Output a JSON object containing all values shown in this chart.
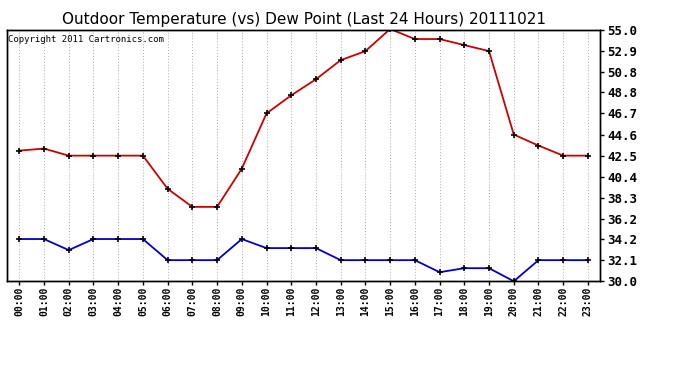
{
  "title": "Outdoor Temperature (vs) Dew Point (Last 24 Hours) 20111021",
  "copyright": "Copyright 2011 Cartronics.com",
  "x_labels": [
    "00:00",
    "01:00",
    "02:00",
    "03:00",
    "04:00",
    "05:00",
    "06:00",
    "07:00",
    "08:00",
    "09:00",
    "10:00",
    "11:00",
    "12:00",
    "13:00",
    "14:00",
    "15:00",
    "16:00",
    "17:00",
    "18:00",
    "19:00",
    "20:00",
    "21:00",
    "22:00",
    "23:00"
  ],
  "temp_data": [
    43.0,
    43.2,
    42.5,
    42.5,
    42.5,
    42.5,
    39.2,
    37.4,
    37.4,
    41.2,
    46.7,
    48.5,
    50.1,
    52.0,
    52.9,
    55.1,
    54.1,
    54.1,
    53.5,
    52.9,
    44.6,
    43.5,
    42.5,
    42.5
  ],
  "dew_data": [
    34.2,
    34.2,
    33.1,
    34.2,
    34.2,
    34.2,
    32.1,
    32.1,
    32.1,
    34.2,
    33.3,
    33.3,
    33.3,
    32.1,
    32.1,
    32.1,
    32.1,
    30.9,
    31.3,
    31.3,
    30.0,
    32.1,
    32.1,
    32.1
  ],
  "temp_color": "#cc0000",
  "dew_color": "#0000cc",
  "ylim": [
    30.0,
    55.0
  ],
  "yticks_right": [
    30.0,
    32.1,
    34.2,
    36.2,
    38.3,
    40.4,
    42.5,
    44.6,
    46.7,
    48.8,
    50.8,
    52.9,
    55.0
  ],
  "background_color": "#ffffff",
  "plot_bg_color": "#ffffff",
  "grid_color": "#aaaaaa",
  "title_fontsize": 11,
  "copyright_fontsize": 6.5,
  "ytick_fontsize": 9,
  "xtick_fontsize": 7
}
